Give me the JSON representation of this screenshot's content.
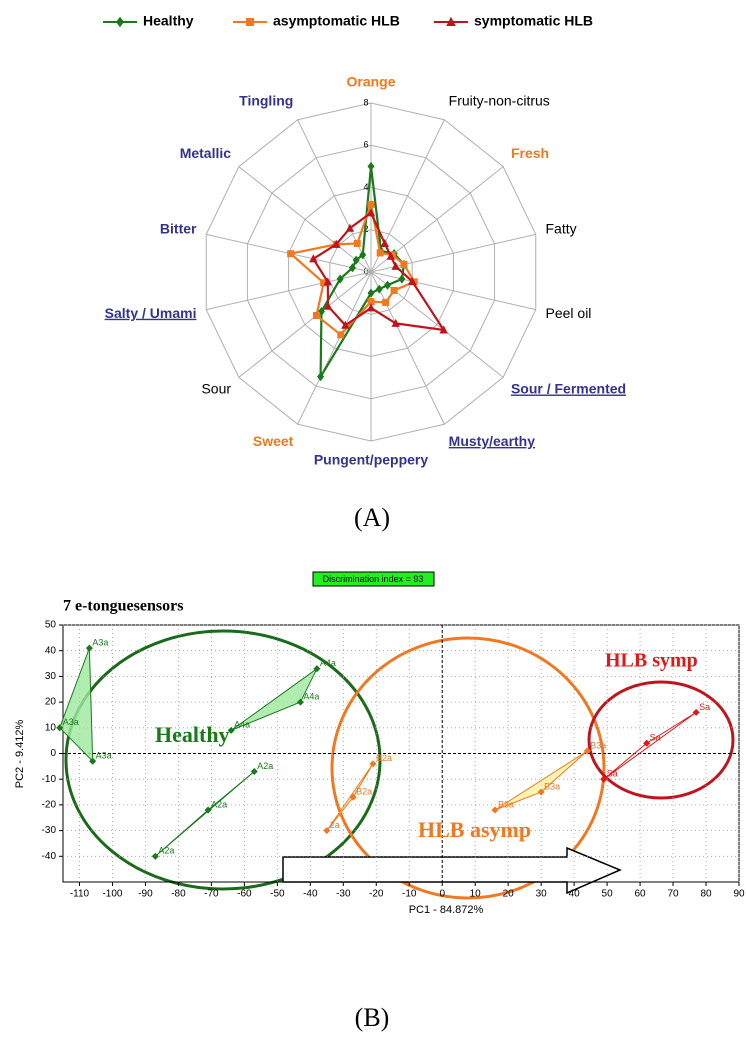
{
  "chart_data": [
    {
      "type": "radar",
      "caption": "(A)",
      "categories": [
        "Orange",
        "Fruity-non-citrus",
        "Fresh",
        "Fatty",
        "Peel oil",
        "Sour / Fermented",
        "Musty/earthy",
        "Pungent/peppery",
        "Sweet",
        "Sour",
        "Salty / Umami",
        "Bitter",
        "Metallic",
        "Tingling"
      ],
      "category_colors": [
        "#f07820",
        "#000000",
        "#f07820",
        "#000000",
        "#000000",
        "#33338f",
        "#33338f",
        "#33338f",
        "#f07820",
        "#000000",
        "#33338f",
        "#33338f",
        "#33338f",
        "#33338f"
      ],
      "category_bold": [
        true,
        false,
        true,
        false,
        false,
        true,
        true,
        true,
        true,
        false,
        true,
        true,
        true,
        true
      ],
      "category_underline": [
        false,
        false,
        false,
        false,
        false,
        true,
        true,
        false,
        false,
        false,
        true,
        false,
        false,
        false
      ],
      "rlim": [
        0,
        8
      ],
      "rticks": [
        0,
        2,
        4,
        6,
        8
      ],
      "series": [
        {
          "name": "Healthy",
          "color": "#1a7a1a",
          "marker": "diamond",
          "values": [
            5.0,
            1.1,
            1.4,
            1.6,
            1.5,
            1.0,
            0.9,
            1.0,
            5.5,
            3.0,
            1.5,
            0.9,
            0.9,
            0.9
          ]
        },
        {
          "name": "asymptomatic HLB",
          "color": "#f07820",
          "marker": "square",
          "values": [
            3.2,
            1.0,
            1.3,
            1.6,
            2.1,
            1.4,
            1.6,
            1.4,
            3.3,
            3.3,
            2.3,
            3.9,
            2.1,
            1.5
          ]
        },
        {
          "name": "symptomatic HLB",
          "color": "#c0141c",
          "marker": "triangle",
          "values": [
            2.8,
            1.5,
            1.2,
            1.2,
            2.0,
            4.4,
            2.7,
            1.7,
            2.8,
            2.6,
            2.1,
            2.8,
            2.1,
            2.3
          ]
        }
      ]
    },
    {
      "type": "scatter",
      "caption": "(B)",
      "title": "7 e-tonguesensors",
      "badge": "Discrimination index = 93",
      "xlabel": "PC1 - 84.872%",
      "ylabel": "PC2 - 9.412%",
      "xlim": [
        -115,
        90
      ],
      "xticks": [
        -110,
        -100,
        -90,
        -80,
        -70,
        -60,
        -50,
        -40,
        -30,
        -20,
        -10,
        0,
        10,
        20,
        30,
        40,
        50,
        60,
        70,
        80,
        90
      ],
      "ylim": [
        -50,
        50
      ],
      "yticks": [
        -40,
        -30,
        -20,
        -10,
        0,
        10,
        20,
        30,
        40,
        50
      ],
      "grid": true,
      "groups": [
        {
          "label": "Healthy",
          "color": "#1a7a1a",
          "subsets": [
            {
              "x": [
                -107,
                -116,
                -106
              ],
              "y": [
                41,
                10,
                -3
              ],
              "point_labels": [
                "A3a",
                "A3a",
                "A3a"
              ],
              "fill": "#9ee89e"
            },
            {
              "x": [
                -38,
                -43,
                -64
              ],
              "y": [
                33,
                20,
                9
              ],
              "point_labels": [
                "A4a",
                "A4a",
                "A4a"
              ],
              "fill": "#9ee89e"
            },
            {
              "x": [
                -57,
                -71,
                -87
              ],
              "y": [
                -7,
                -22,
                -40
              ],
              "point_labels": [
                "A2a",
                "A2a",
                "A2a"
              ]
            }
          ]
        },
        {
          "label": "HLB asymp",
          "color": "#f07820",
          "subsets": [
            {
              "x": [
                -21,
                -27,
                -35
              ],
              "y": [
                -4,
                -17,
                -30
              ],
              "point_labels": [
                "B2a",
                "B2a",
                "2a"
              ],
              "fill": "#fff0a0"
            },
            {
              "x": [
                44,
                30,
                16
              ],
              "y": [
                1,
                -15,
                -22
              ],
              "point_labels": [
                "B3a",
                "B3a",
                "B3a"
              ],
              "fill": "#fff0a0"
            }
          ]
        },
        {
          "label": "HLB symp",
          "color": "#e01818",
          "subsets": [
            {
              "x": [
                77,
                62,
                49
              ],
              "y": [
                16,
                4,
                -10
              ],
              "point_labels": [
                "Sa",
                "Sa",
                "Sa"
              ]
            }
          ]
        }
      ]
    }
  ]
}
